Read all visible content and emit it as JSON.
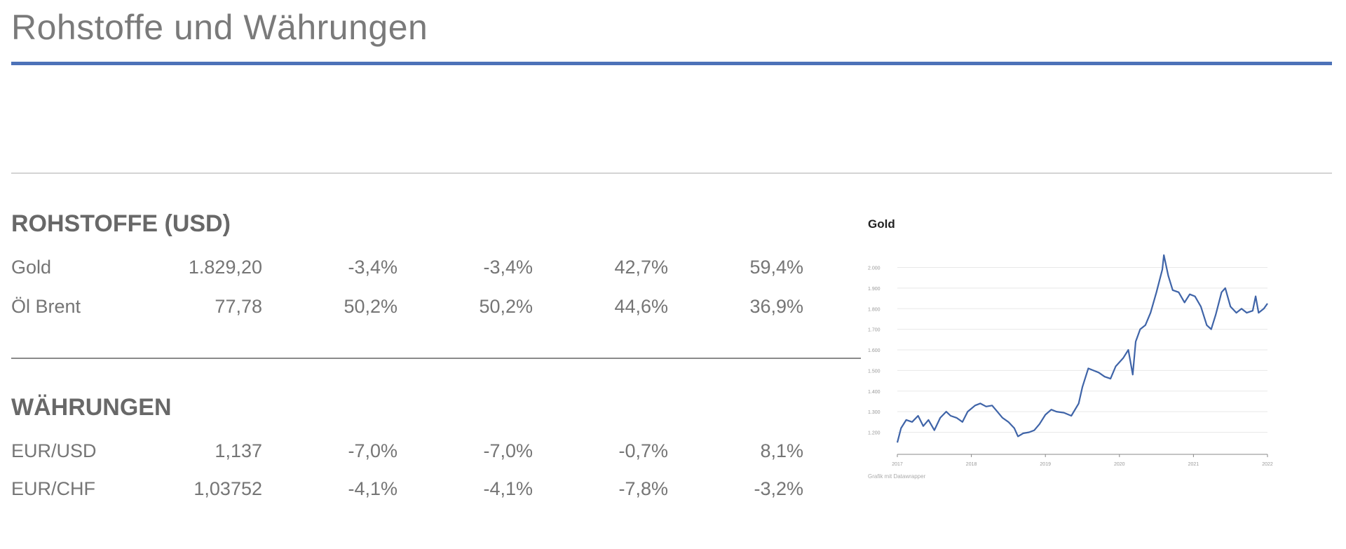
{
  "page_title": "Rohstoffe und Währungen",
  "sections": [
    {
      "heading": "ROHSTOFFE (USD)",
      "rows": [
        {
          "name": "Gold",
          "values": [
            "1.829,20",
            "-3,4%",
            "-3,4%",
            "42,7%",
            "59,4%"
          ]
        },
        {
          "name": "Öl Brent",
          "values": [
            "77,78",
            "50,2%",
            "50,2%",
            "44,6%",
            "36,9%"
          ]
        }
      ]
    },
    {
      "heading": "WÄHRUNGEN",
      "rows": [
        {
          "name": "EUR/USD",
          "values": [
            "1,137",
            "-7,0%",
            "-7,0%",
            "-0,7%",
            "8,1%"
          ]
        },
        {
          "name": "EUR/CHF",
          "values": [
            "1,03752",
            "-4,1%",
            "-4,1%",
            "-7,8%",
            "-3,2%"
          ]
        }
      ]
    }
  ],
  "chart_data": {
    "type": "line",
    "title": "Gold",
    "note": "Grafik mit Datawrapper",
    "xlabel": "",
    "ylabel": "",
    "x_ticks": [
      "2017",
      "2018",
      "2019",
      "2020",
      "2021",
      "2022"
    ],
    "y_ticks": [
      1200,
      1300,
      1400,
      1500,
      1600,
      1700,
      1800,
      1900,
      2000
    ],
    "y_tick_labels": [
      "1.200",
      "1.300",
      "1.400",
      "1.500",
      "1.600",
      "1.700",
      "1.800",
      "1.900",
      "2.000"
    ],
    "ylim": [
      1120,
      2080
    ],
    "xlim": [
      2017.0,
      2022.0
    ],
    "color": "#3f64a8",
    "series": [
      {
        "x": [
          2017.0,
          2017.05,
          2017.12,
          2017.2,
          2017.28,
          2017.35,
          2017.42,
          2017.5,
          2017.58,
          2017.66,
          2017.72,
          2017.8,
          2017.88,
          2017.95,
          2018.05,
          2018.12,
          2018.2,
          2018.28,
          2018.35,
          2018.42,
          2018.5,
          2018.58,
          2018.63,
          2018.7,
          2018.78,
          2018.85,
          2018.92,
          2019.0,
          2019.08,
          2019.15,
          2019.25,
          2019.35,
          2019.45,
          2019.5,
          2019.58,
          2019.65,
          2019.72,
          2019.8,
          2019.88,
          2019.95,
          2020.05,
          2020.12,
          2020.18,
          2020.22,
          2020.28,
          2020.35,
          2020.42,
          2020.5,
          2020.58,
          2020.6,
          2020.66,
          2020.72,
          2020.8,
          2020.88,
          2020.95,
          2021.02,
          2021.1,
          2021.18,
          2021.24,
          2021.3,
          2021.38,
          2021.43,
          2021.5,
          2021.58,
          2021.65,
          2021.72,
          2021.8,
          2021.84,
          2021.88,
          2021.95,
          2022.0
        ],
        "y": [
          1150,
          1220,
          1260,
          1250,
          1280,
          1230,
          1260,
          1210,
          1270,
          1300,
          1280,
          1270,
          1250,
          1300,
          1330,
          1340,
          1325,
          1330,
          1300,
          1270,
          1250,
          1220,
          1180,
          1195,
          1200,
          1210,
          1240,
          1285,
          1310,
          1300,
          1295,
          1280,
          1340,
          1420,
          1510,
          1500,
          1490,
          1470,
          1460,
          1520,
          1560,
          1600,
          1480,
          1640,
          1700,
          1720,
          1780,
          1880,
          1990,
          2060,
          1960,
          1890,
          1880,
          1830,
          1870,
          1860,
          1810,
          1720,
          1700,
          1770,
          1880,
          1900,
          1810,
          1780,
          1800,
          1780,
          1790,
          1860,
          1780,
          1800,
          1825
        ]
      }
    ]
  }
}
